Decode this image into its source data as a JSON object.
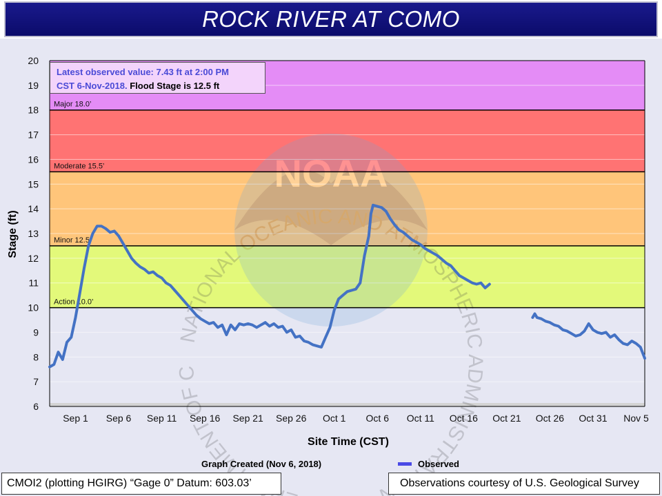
{
  "header": {
    "title": "ROCK RIVER AT COMO"
  },
  "info": {
    "latest": "Latest observed value: 7.43 ft at 2:00 PM",
    "date": "CST 6-Nov-2018.",
    "flood": " Flood Stage is 12.5 ft"
  },
  "footer": {
    "created": "Graph Created (Nov 6, 2018)",
    "legend_label": "Observed",
    "datum": "CMOI2 (plotting HGIRG) “Gage 0” Datum: 603.03’",
    "credit": "Observations courtesy of U.S. Geological Survey"
  },
  "watermark": {
    "logo_text": "NOAA",
    "ring_text": "NATIONAL OCEANIC AND ATMOSPHERIC ADMINISTRATION • U.S. DEPARTMENT OF COMMERCE"
  },
  "chart_data": {
    "type": "line",
    "title": "ROCK RIVER AT COMO",
    "xlabel": "Site Time (CST)",
    "ylabel": "Stage (ft)",
    "ylim": [
      6,
      20
    ],
    "yticks": [
      6,
      7,
      8,
      9,
      10,
      11,
      12,
      13,
      14,
      15,
      16,
      17,
      18,
      19,
      20
    ],
    "xlim": [
      "2018-08-29",
      "2018-11-06"
    ],
    "xticks": [
      {
        "label": "Sep 1",
        "date": "2018-09-01"
      },
      {
        "label": "Sep 6",
        "date": "2018-09-06"
      },
      {
        "label": "Sep 11",
        "date": "2018-09-11"
      },
      {
        "label": "Sep 16",
        "date": "2018-09-16"
      },
      {
        "label": "Sep 21",
        "date": "2018-09-21"
      },
      {
        "label": "Sep 26",
        "date": "2018-09-26"
      },
      {
        "label": "Oct 1",
        "date": "2018-10-01"
      },
      {
        "label": "Oct 6",
        "date": "2018-10-06"
      },
      {
        "label": "Oct 11",
        "date": "2018-10-11"
      },
      {
        "label": "Oct 16",
        "date": "2018-10-16"
      },
      {
        "label": "Oct 21",
        "date": "2018-10-21"
      },
      {
        "label": "Oct 26",
        "date": "2018-10-26"
      },
      {
        "label": "Oct 31",
        "date": "2018-10-31"
      },
      {
        "label": "Nov 5",
        "date": "2018-11-05"
      }
    ],
    "flood_categories": [
      {
        "name": "Action",
        "label": "Action 10.0’",
        "from": 10.0,
        "to": 12.5,
        "color": "#e3f97a"
      },
      {
        "name": "Minor",
        "label": "Minor 12.5’",
        "from": 12.5,
        "to": 15.5,
        "color": "#ffc57a"
      },
      {
        "name": "Moderate",
        "label": "Moderate 15.5’",
        "from": 15.5,
        "to": 18.0,
        "color": "#ff7373"
      },
      {
        "name": "Major",
        "label": "Major 18.0’",
        "from": 18.0,
        "to": 20.0,
        "color": "#e48cf6"
      }
    ],
    "series": [
      {
        "name": "Observed",
        "color": "#4472c4",
        "segments": [
          [
            [
              "2018-08-29T00:00",
              7.6
            ],
            [
              "2018-08-29T12:00",
              7.7
            ],
            [
              "2018-08-30T00:00",
              8.2
            ],
            [
              "2018-08-30T12:00",
              7.9
            ],
            [
              "2018-08-31T00:00",
              8.6
            ],
            [
              "2018-08-31T12:00",
              8.8
            ],
            [
              "2018-09-01T00:00",
              9.6
            ],
            [
              "2018-09-01T12:00",
              10.6
            ],
            [
              "2018-09-02T00:00",
              11.6
            ],
            [
              "2018-09-02T12:00",
              12.5
            ],
            [
              "2018-09-03T00:00",
              13.0
            ],
            [
              "2018-09-03T12:00",
              13.3
            ],
            [
              "2018-09-04T00:00",
              13.3
            ],
            [
              "2018-09-04T12:00",
              13.2
            ],
            [
              "2018-09-05T00:00",
              13.05
            ],
            [
              "2018-09-05T12:00",
              13.1
            ],
            [
              "2018-09-06T00:00",
              12.9
            ],
            [
              "2018-09-06T12:00",
              12.6
            ],
            [
              "2018-09-07T00:00",
              12.3
            ],
            [
              "2018-09-07T12:00",
              12.0
            ],
            [
              "2018-09-08T00:00",
              11.8
            ],
            [
              "2018-09-08T12:00",
              11.65
            ],
            [
              "2018-09-09T00:00",
              11.55
            ],
            [
              "2018-09-09T12:00",
              11.4
            ],
            [
              "2018-09-10T00:00",
              11.45
            ],
            [
              "2018-09-10T12:00",
              11.3
            ],
            [
              "2018-09-11T00:00",
              11.2
            ],
            [
              "2018-09-11T12:00",
              11.0
            ],
            [
              "2018-09-12T00:00",
              10.9
            ],
            [
              "2018-09-12T12:00",
              10.7
            ],
            [
              "2018-09-13T00:00",
              10.5
            ],
            [
              "2018-09-13T12:00",
              10.3
            ],
            [
              "2018-09-14T00:00",
              10.1
            ],
            [
              "2018-09-14T12:00",
              9.9
            ],
            [
              "2018-09-15T00:00",
              9.7
            ],
            [
              "2018-09-15T12:00",
              9.55
            ],
            [
              "2018-09-16T00:00",
              9.45
            ],
            [
              "2018-09-16T12:00",
              9.35
            ],
            [
              "2018-09-17T00:00",
              9.4
            ],
            [
              "2018-09-17T12:00",
              9.2
            ],
            [
              "2018-09-18T00:00",
              9.3
            ],
            [
              "2018-09-18T12:00",
              8.9
            ],
            [
              "2018-09-19T00:00",
              9.3
            ],
            [
              "2018-09-19T12:00",
              9.1
            ],
            [
              "2018-09-20T00:00",
              9.35
            ],
            [
              "2018-09-20T12:00",
              9.3
            ],
            [
              "2018-09-21T00:00",
              9.35
            ],
            [
              "2018-09-21T12:00",
              9.3
            ],
            [
              "2018-09-22T00:00",
              9.2
            ],
            [
              "2018-09-22T12:00",
              9.3
            ],
            [
              "2018-09-23T00:00",
              9.4
            ],
            [
              "2018-09-23T12:00",
              9.25
            ],
            [
              "2018-09-24T00:00",
              9.35
            ],
            [
              "2018-09-24T12:00",
              9.2
            ],
            [
              "2018-09-25T00:00",
              9.25
            ],
            [
              "2018-09-25T12:00",
              9.0
            ],
            [
              "2018-09-26T00:00",
              9.1
            ],
            [
              "2018-09-26T12:00",
              8.8
            ],
            [
              "2018-09-27T00:00",
              8.85
            ],
            [
              "2018-09-27T12:00",
              8.65
            ],
            [
              "2018-09-28T00:00",
              8.6
            ],
            [
              "2018-09-28T12:00",
              8.5
            ],
            [
              "2018-09-29T00:00",
              8.45
            ],
            [
              "2018-09-29T12:00",
              8.4
            ],
            [
              "2018-09-30T00:00",
              8.8
            ],
            [
              "2018-09-30T12:00",
              9.2
            ],
            [
              "2018-10-01T00:00",
              9.9
            ],
            [
              "2018-10-01T12:00",
              10.35
            ],
            [
              "2018-10-02T00:00",
              10.5
            ],
            [
              "2018-10-02T12:00",
              10.65
            ],
            [
              "2018-10-03T00:00",
              10.7
            ],
            [
              "2018-10-03T12:00",
              10.75
            ],
            [
              "2018-10-04T00:00",
              11.0
            ],
            [
              "2018-10-04T12:00",
              12.1
            ],
            [
              "2018-10-05T00:00",
              12.9
            ],
            [
              "2018-10-05T06:00",
              13.8
            ],
            [
              "2018-10-05T12:00",
              14.15
            ],
            [
              "2018-10-06T00:00",
              14.1
            ],
            [
              "2018-10-06T12:00",
              14.05
            ],
            [
              "2018-10-07T00:00",
              13.9
            ],
            [
              "2018-10-07T12:00",
              13.6
            ],
            [
              "2018-10-08T00:00",
              13.35
            ],
            [
              "2018-10-08T12:00",
              13.15
            ],
            [
              "2018-10-09T00:00",
              13.05
            ],
            [
              "2018-10-09T12:00",
              12.9
            ],
            [
              "2018-10-10T00:00",
              12.75
            ],
            [
              "2018-10-10T12:00",
              12.65
            ],
            [
              "2018-10-11T00:00",
              12.55
            ],
            [
              "2018-10-11T12:00",
              12.4
            ],
            [
              "2018-10-12T00:00",
              12.3
            ],
            [
              "2018-10-12T12:00",
              12.2
            ],
            [
              "2018-10-13T00:00",
              12.1
            ],
            [
              "2018-10-13T12:00",
              11.95
            ],
            [
              "2018-10-14T00:00",
              11.8
            ],
            [
              "2018-10-14T12:00",
              11.7
            ],
            [
              "2018-10-15T00:00",
              11.5
            ],
            [
              "2018-10-15T12:00",
              11.3
            ],
            [
              "2018-10-16T00:00",
              11.2
            ],
            [
              "2018-10-16T12:00",
              11.1
            ],
            [
              "2018-10-17T00:00",
              11.0
            ],
            [
              "2018-10-17T12:00",
              10.95
            ],
            [
              "2018-10-18T00:00",
              11.0
            ],
            [
              "2018-10-18T12:00",
              10.8
            ],
            [
              "2018-10-19T00:00",
              10.95
            ]
          ],
          [
            [
              "2018-10-24T00:00",
              9.6
            ],
            [
              "2018-10-24T06:00",
              9.75
            ],
            [
              "2018-10-24T12:00",
              9.6
            ],
            [
              "2018-10-25T00:00",
              9.55
            ],
            [
              "2018-10-25T12:00",
              9.45
            ],
            [
              "2018-10-26T00:00",
              9.4
            ],
            [
              "2018-10-26T12:00",
              9.3
            ],
            [
              "2018-10-27T00:00",
              9.25
            ],
            [
              "2018-10-27T12:00",
              9.1
            ],
            [
              "2018-10-28T00:00",
              9.05
            ],
            [
              "2018-10-28T12:00",
              8.95
            ],
            [
              "2018-10-29T00:00",
              8.85
            ],
            [
              "2018-10-29T12:00",
              8.9
            ],
            [
              "2018-10-30T00:00",
              9.05
            ],
            [
              "2018-10-30T12:00",
              9.35
            ],
            [
              "2018-10-31T00:00",
              9.1
            ],
            [
              "2018-10-31T12:00",
              9.0
            ],
            [
              "2018-11-01T00:00",
              8.95
            ],
            [
              "2018-11-01T12:00",
              9.0
            ],
            [
              "2018-11-02T00:00",
              8.8
            ],
            [
              "2018-11-02T12:00",
              8.9
            ],
            [
              "2018-11-03T00:00",
              8.7
            ],
            [
              "2018-11-03T12:00",
              8.55
            ],
            [
              "2018-11-04T00:00",
              8.5
            ],
            [
              "2018-11-04T12:00",
              8.65
            ],
            [
              "2018-11-05T00:00",
              8.55
            ],
            [
              "2018-11-05T12:00",
              8.4
            ],
            [
              "2018-11-06T00:00",
              7.95
            ]
          ]
        ]
      }
    ]
  }
}
